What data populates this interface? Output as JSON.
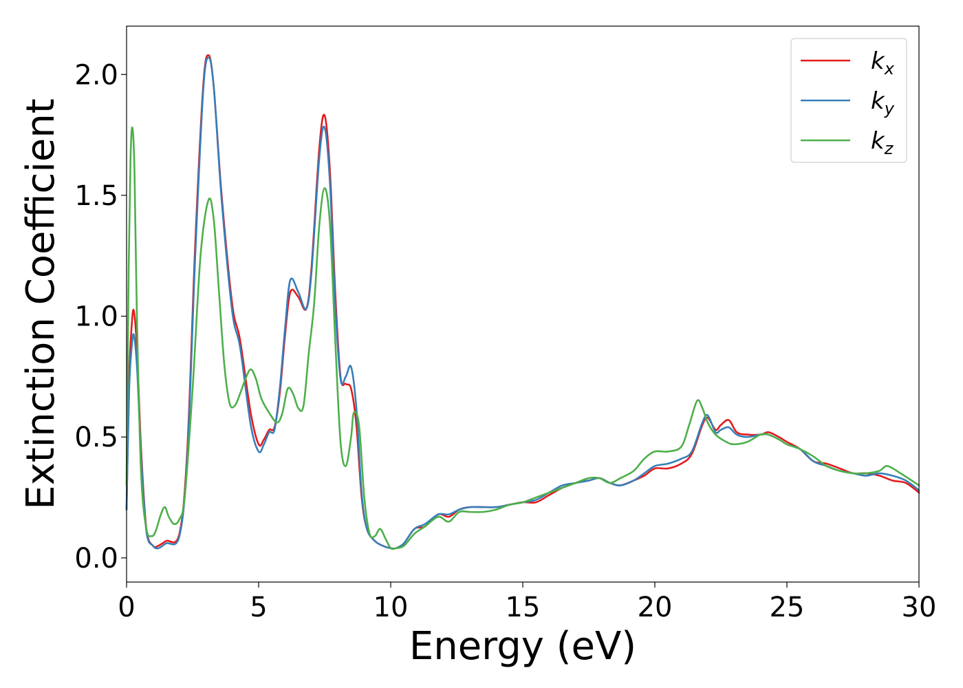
{
  "chart_data": {
    "type": "line",
    "title": "",
    "xlabel": "Energy (eV)",
    "ylabel": "Extinction Coefficient",
    "xlim": [
      0,
      30
    ],
    "ylim": [
      -0.1,
      2.2
    ],
    "xticks": [
      0,
      5,
      10,
      15,
      20,
      25,
      30
    ],
    "xtick_labels": [
      "0",
      "5",
      "10",
      "15",
      "20",
      "25",
      "30"
    ],
    "yticks": [
      0.0,
      0.5,
      1.0,
      1.5,
      2.0
    ],
    "ytick_labels": [
      "0.0",
      "0.5",
      "1.0",
      "1.5",
      "2.0"
    ],
    "grid": false,
    "legend_position": "top-right",
    "series": [
      {
        "name": "k_x",
        "name_base": "k",
        "name_sub": "x",
        "color": "#e41a1c",
        "x": [
          0.0,
          0.1,
          0.2,
          0.28,
          0.4,
          0.55,
          0.75,
          1.0,
          1.2,
          1.5,
          2.0,
          2.3,
          2.6,
          2.9,
          3.1,
          3.3,
          3.6,
          4.0,
          4.3,
          4.7,
          5.0,
          5.2,
          5.4,
          5.6,
          5.8,
          6.0,
          6.2,
          6.5,
          6.8,
          7.0,
          7.3,
          7.5,
          7.7,
          7.9,
          8.1,
          8.3,
          8.5,
          8.7,
          8.9,
          9.1,
          9.4,
          9.7,
          10.0,
          10.2,
          10.5,
          10.9,
          11.3,
          11.8,
          12.2,
          12.6,
          13.0,
          13.5,
          14.0,
          14.5,
          15.0,
          15.5,
          16.0,
          16.5,
          17.0,
          17.5,
          17.9,
          18.3,
          18.7,
          19.2,
          19.6,
          20.0,
          20.5,
          21.0,
          21.4,
          21.8,
          22.0,
          22.3,
          22.5,
          22.8,
          23.1,
          23.5,
          24.0,
          24.3,
          24.7,
          25.0,
          25.5,
          26.0,
          26.5,
          27.0,
          27.5,
          28.0,
          28.5,
          29.0,
          29.5,
          30.0
        ],
        "values": [
          0.2,
          0.75,
          0.97,
          1.02,
          0.85,
          0.45,
          0.12,
          0.05,
          0.05,
          0.07,
          0.1,
          0.45,
          1.3,
          1.95,
          2.08,
          1.95,
          1.5,
          1.05,
          0.9,
          0.6,
          0.47,
          0.49,
          0.53,
          0.54,
          0.68,
          0.92,
          1.1,
          1.08,
          1.03,
          1.2,
          1.7,
          1.83,
          1.6,
          1.1,
          0.75,
          0.72,
          0.7,
          0.55,
          0.25,
          0.12,
          0.07,
          0.05,
          0.04,
          0.04,
          0.06,
          0.12,
          0.13,
          0.18,
          0.17,
          0.2,
          0.21,
          0.21,
          0.21,
          0.22,
          0.23,
          0.23,
          0.26,
          0.29,
          0.31,
          0.32,
          0.33,
          0.31,
          0.3,
          0.32,
          0.34,
          0.37,
          0.37,
          0.39,
          0.43,
          0.55,
          0.58,
          0.53,
          0.55,
          0.57,
          0.52,
          0.51,
          0.51,
          0.52,
          0.5,
          0.48,
          0.45,
          0.4,
          0.39,
          0.37,
          0.35,
          0.35,
          0.34,
          0.32,
          0.31,
          0.27
        ]
      },
      {
        "name": "k_y",
        "name_base": "k",
        "name_sub": "y",
        "color": "#377eb8",
        "x": [
          0.0,
          0.1,
          0.2,
          0.28,
          0.4,
          0.55,
          0.75,
          1.0,
          1.2,
          1.5,
          2.0,
          2.3,
          2.6,
          2.9,
          3.1,
          3.3,
          3.6,
          4.0,
          4.3,
          4.7,
          5.0,
          5.2,
          5.4,
          5.6,
          5.8,
          6.0,
          6.2,
          6.5,
          6.8,
          7.0,
          7.3,
          7.5,
          7.7,
          7.9,
          8.1,
          8.3,
          8.5,
          8.7,
          8.9,
          9.1,
          9.4,
          9.7,
          10.0,
          10.2,
          10.5,
          10.9,
          11.3,
          11.8,
          12.2,
          12.6,
          13.0,
          13.5,
          14.0,
          14.5,
          15.0,
          15.5,
          16.0,
          16.5,
          17.0,
          17.5,
          17.9,
          18.3,
          18.7,
          19.2,
          19.6,
          20.0,
          20.5,
          21.0,
          21.4,
          21.8,
          22.0,
          22.3,
          22.5,
          22.8,
          23.1,
          23.5,
          24.0,
          24.3,
          24.7,
          25.0,
          25.5,
          26.0,
          26.5,
          27.0,
          27.5,
          28.0,
          28.5,
          29.0,
          29.5,
          30.0
        ],
        "values": [
          0.2,
          0.7,
          0.88,
          0.92,
          0.78,
          0.42,
          0.11,
          0.05,
          0.04,
          0.06,
          0.09,
          0.42,
          1.25,
          1.93,
          2.07,
          1.95,
          1.48,
          1.02,
          0.87,
          0.55,
          0.44,
          0.47,
          0.52,
          0.53,
          0.7,
          0.95,
          1.15,
          1.1,
          1.03,
          1.18,
          1.66,
          1.78,
          1.55,
          1.05,
          0.74,
          0.75,
          0.79,
          0.62,
          0.27,
          0.12,
          0.07,
          0.05,
          0.04,
          0.04,
          0.06,
          0.12,
          0.14,
          0.18,
          0.18,
          0.2,
          0.21,
          0.21,
          0.21,
          0.22,
          0.23,
          0.24,
          0.27,
          0.3,
          0.31,
          0.32,
          0.33,
          0.31,
          0.3,
          0.32,
          0.35,
          0.38,
          0.39,
          0.41,
          0.44,
          0.56,
          0.59,
          0.52,
          0.53,
          0.54,
          0.51,
          0.5,
          0.51,
          0.51,
          0.49,
          0.47,
          0.45,
          0.4,
          0.38,
          0.36,
          0.35,
          0.34,
          0.35,
          0.34,
          0.32,
          0.28
        ]
      },
      {
        "name": "k_z",
        "name_base": "k",
        "name_sub": "z",
        "color": "#4daf4a",
        "x": [
          0.0,
          0.08,
          0.15,
          0.22,
          0.3,
          0.4,
          0.55,
          0.75,
          0.95,
          1.1,
          1.3,
          1.45,
          1.6,
          1.8,
          2.0,
          2.2,
          2.5,
          2.8,
          3.1,
          3.3,
          3.5,
          3.7,
          3.9,
          4.1,
          4.3,
          4.5,
          4.7,
          4.9,
          5.1,
          5.4,
          5.7,
          5.9,
          6.1,
          6.3,
          6.5,
          6.7,
          6.9,
          7.1,
          7.3,
          7.5,
          7.7,
          7.9,
          8.1,
          8.3,
          8.5,
          8.6,
          8.8,
          9.0,
          9.2,
          9.4,
          9.6,
          9.8,
          10.0,
          10.2,
          10.5,
          10.9,
          11.3,
          11.8,
          12.2,
          12.6,
          13.0,
          13.5,
          14.0,
          14.5,
          15.0,
          15.5,
          16.0,
          16.5,
          17.0,
          17.5,
          17.9,
          18.3,
          18.7,
          19.2,
          19.6,
          20.0,
          20.5,
          21.0,
          21.3,
          21.6,
          21.8,
          22.0,
          22.3,
          22.7,
          23.0,
          23.5,
          24.0,
          24.3,
          24.7,
          25.0,
          25.5,
          26.0,
          26.5,
          27.0,
          27.5,
          28.0,
          28.5,
          28.8,
          29.3,
          30.0
        ],
        "values": [
          0.3,
          1.2,
          1.65,
          1.78,
          1.6,
          0.95,
          0.35,
          0.12,
          0.09,
          0.11,
          0.18,
          0.21,
          0.17,
          0.14,
          0.16,
          0.25,
          0.7,
          1.25,
          1.48,
          1.4,
          1.1,
          0.8,
          0.64,
          0.63,
          0.68,
          0.74,
          0.78,
          0.74,
          0.66,
          0.6,
          0.56,
          0.6,
          0.7,
          0.68,
          0.62,
          0.63,
          0.85,
          1.05,
          1.38,
          1.53,
          1.38,
          0.9,
          0.48,
          0.38,
          0.5,
          0.6,
          0.55,
          0.25,
          0.1,
          0.09,
          0.12,
          0.08,
          0.04,
          0.04,
          0.05,
          0.1,
          0.13,
          0.17,
          0.15,
          0.19,
          0.19,
          0.19,
          0.2,
          0.22,
          0.23,
          0.25,
          0.27,
          0.29,
          0.31,
          0.33,
          0.33,
          0.31,
          0.33,
          0.36,
          0.41,
          0.44,
          0.44,
          0.46,
          0.55,
          0.65,
          0.62,
          0.56,
          0.51,
          0.48,
          0.47,
          0.48,
          0.51,
          0.51,
          0.49,
          0.47,
          0.45,
          0.42,
          0.38,
          0.36,
          0.35,
          0.35,
          0.36,
          0.38,
          0.35,
          0.3
        ]
      }
    ]
  }
}
